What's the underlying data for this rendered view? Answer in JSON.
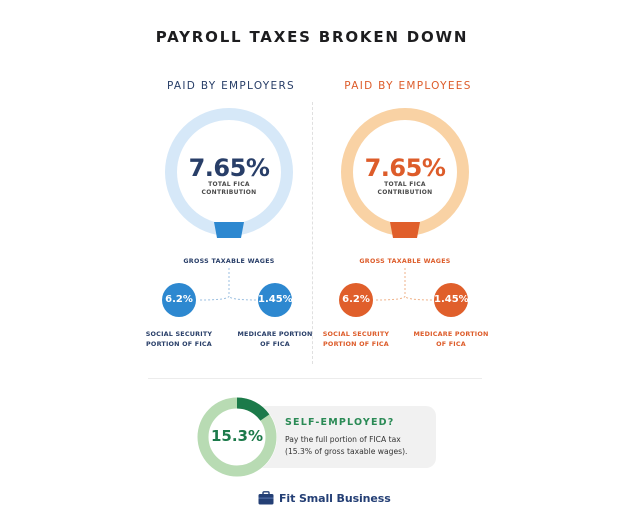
{
  "title": "PAYROLL TAXES BROKEN DOWN",
  "colors": {
    "employer_accent": "#2d88d0",
    "employer_ring": "#d6e8f8",
    "employer_text": "#283e68",
    "employee_accent": "#e05f2b",
    "employee_ring": "#f9d2a4",
    "employee_text": "#dd5c2a",
    "self_accent": "#1c7a4a",
    "self_ring": "#b8dbb3"
  },
  "employers": {
    "heading": "PAID BY EMPLOYERS",
    "total_value": "7.65%",
    "total_label_line1": "TOTAL FICA",
    "total_label_line2": "CONTRIBUTION",
    "wages_label": "GROSS TAXABLE WAGES",
    "social_security_value": "6.2%",
    "social_security_label_line1": "SOCIAL SECURITY",
    "social_security_label_line2": "PORTION OF FICA",
    "medicare_value": "1.45%",
    "medicare_label_line1": "MEDICARE PORTION",
    "medicare_label_line2": "OF FICA"
  },
  "employees": {
    "heading": "PAID BY EMPLOYEES",
    "total_value": "7.65%",
    "total_label_line1": "TOTAL FICA",
    "total_label_line2": "CONTRIBUTION",
    "wages_label": "GROSS TAXABLE WAGES",
    "social_security_value": "6.2%",
    "social_security_label_line1": "SOCIAL SECURITY",
    "social_security_label_line2": "PORTION OF FICA",
    "medicare_value": "1.45%",
    "medicare_label_line1": "MEDICARE PORTION",
    "medicare_label_line2": "OF FICA"
  },
  "self_employed": {
    "value": "15.3%",
    "fraction_highlighted": 0.153,
    "heading": "SELF-EMPLOYED?",
    "text_line1": "Pay the full portion of FICA tax",
    "text_line2": "(15.3% of gross taxable wages)."
  },
  "brand": {
    "name": "Fit Small Business",
    "icon": "briefcase-icon"
  }
}
